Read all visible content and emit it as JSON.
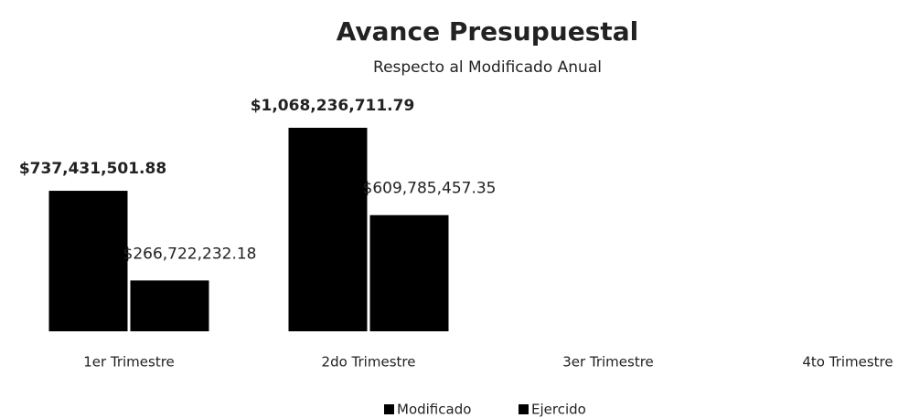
{
  "chart_data": {
    "type": "bar",
    "title": "Avance Presupuestal",
    "subtitle": "Respecto al Modificado Anual",
    "categories": [
      "1er Trimestre",
      "2do Trimestre",
      "3er Trimestre",
      "4to Trimestre"
    ],
    "series": [
      {
        "name": "Modificado",
        "color": "#000000",
        "values": [
          737431501.88,
          1068236711.79,
          null,
          null
        ],
        "value_labels": [
          "$737,431,501.88",
          "$1,068,236,711.79",
          null,
          null
        ]
      },
      {
        "name": "Ejercido",
        "color": "#000000",
        "values": [
          266722232.18,
          609785457.35,
          null,
          null
        ],
        "value_labels": [
          "$266,722,232.18",
          "$609,785,457.35",
          null,
          null
        ]
      }
    ]
  }
}
